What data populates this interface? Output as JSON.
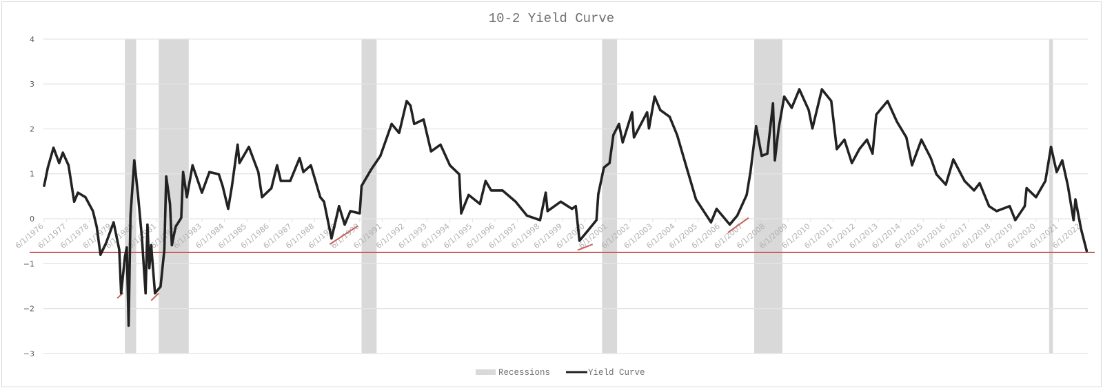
{
  "chart_data": {
    "type": "line",
    "title": "10-2 Yield Curve",
    "xlabel": "",
    "ylabel": "",
    "ylim": [
      -3,
      4
    ],
    "y_ticks": [
      "4",
      "3",
      "2",
      "1",
      "0",
      "−1",
      "−2",
      "−3"
    ],
    "y_tick_values": [
      4,
      3,
      2,
      1,
      0,
      -1,
      -2,
      -3
    ],
    "x_tick_labels": [
      "6/1/1976",
      "6/1/1977",
      "6/1/1978",
      "6/1/1979",
      "6/1/1980",
      "6/1/1981",
      "6/1/1982",
      "6/1/1983",
      "6/1/1984",
      "6/1/1985",
      "6/1/1986",
      "6/1/1987",
      "6/1/1988",
      "6/1/1989",
      "6/1/1990",
      "6/1/1991",
      "6/1/1992",
      "6/1/1993",
      "6/1/1994",
      "6/1/1995",
      "6/1/1996",
      "6/1/1997",
      "6/1/1998",
      "6/1/1999",
      "6/1/2000",
      "6/1/2001",
      "6/1/2002",
      "6/1/2003",
      "6/1/2004",
      "6/1/2005",
      "6/1/2006",
      "6/1/2007",
      "6/1/2008",
      "6/1/2009",
      "6/1/2010",
      "6/1/2011",
      "6/1/2012",
      "6/1/2013",
      "6/1/2014",
      "6/1/2015",
      "6/1/2016",
      "6/1/2017",
      "6/1/2018",
      "6/1/2019",
      "6/1/2020",
      "6/1/2021",
      "6/1/2022"
    ],
    "grid": true,
    "legend_position": "bottom",
    "legend": [
      {
        "label": "Recessions",
        "kind": "area",
        "color": "#d9d9d9"
      },
      {
        "label": "Yield Curve",
        "kind": "line",
        "color": "#222222"
      }
    ],
    "colors": {
      "series": "#222222",
      "recession": "#d9d9d9",
      "annotation": "#c9605c"
    },
    "recessions": [
      {
        "start": "1980-01",
        "end": "1980-07"
      },
      {
        "start": "1981-07",
        "end": "1982-11"
      },
      {
        "start": "1990-07",
        "end": "1991-03"
      },
      {
        "start": "2001-03",
        "end": "2001-11"
      },
      {
        "start": "2007-12",
        "end": "2009-03"
      },
      {
        "start": "2021-01",
        "end": "2021-03"
      }
    ],
    "series": [
      {
        "name": "Yield Curve",
        "dates": [
          "1976-06",
          "1976-08",
          "1976-11",
          "1977-02",
          "1977-04",
          "1977-07",
          "1977-10",
          "1977-12",
          "1978-04",
          "1978-08",
          "1978-10",
          "1978-12",
          "1979-03",
          "1979-07",
          "1979-10",
          "1979-11",
          "1980-01",
          "1980-02",
          "1980-03",
          "1980-04",
          "1980-06",
          "1980-08",
          "1980-10",
          "1980-12",
          "1981-01",
          "1981-02",
          "1981-03",
          "1981-05",
          "1981-08",
          "1981-10",
          "1981-11",
          "1982-01",
          "1982-02",
          "1982-04",
          "1982-07",
          "1982-08",
          "1982-10",
          "1983-01",
          "1983-06",
          "1983-10",
          "1984-03",
          "1984-05",
          "1984-08",
          "1984-10",
          "1985-01",
          "1985-02",
          "1985-07",
          "1985-12",
          "1986-02",
          "1986-07",
          "1986-10",
          "1986-12",
          "1987-05",
          "1987-10",
          "1987-12",
          "1988-04",
          "1988-09",
          "1988-11",
          "1989-03",
          "1989-07",
          "1989-10",
          "1990-01",
          "1990-06",
          "1990-07",
          "1990-12",
          "1991-05",
          "1991-11",
          "1992-03",
          "1992-07",
          "1992-09",
          "1992-11",
          "1993-04",
          "1993-08",
          "1994-01",
          "1994-06",
          "1994-11",
          "1994-12",
          "1995-04",
          "1995-10",
          "1996-01",
          "1996-04",
          "1996-10",
          "1997-05",
          "1997-11",
          "1998-06",
          "1998-09",
          "1998-10",
          "1999-05",
          "1999-11",
          "2000-01",
          "2000-03",
          "2000-07",
          "2000-12",
          "2001-01",
          "2001-04",
          "2001-07",
          "2001-09",
          "2001-12",
          "2002-02",
          "2002-07",
          "2002-08",
          "2003-03",
          "2003-04",
          "2003-07",
          "2003-10",
          "2004-03",
          "2004-07",
          "2004-12",
          "2005-05",
          "2006-01",
          "2006-04",
          "2006-11",
          "2007-03",
          "2007-08",
          "2007-10",
          "2008-01",
          "2008-04",
          "2008-07",
          "2008-10",
          "2008-11",
          "2009-01",
          "2009-04",
          "2009-08",
          "2009-12",
          "2010-05",
          "2010-07",
          "2010-12",
          "2011-05",
          "2011-08",
          "2011-12",
          "2012-04",
          "2012-08",
          "2012-12",
          "2013-03",
          "2013-05",
          "2013-11",
          "2014-04",
          "2014-09",
          "2014-12",
          "2015-05",
          "2015-10",
          "2016-01",
          "2016-06",
          "2016-10",
          "2017-04",
          "2017-09",
          "2017-12",
          "2018-05",
          "2018-09",
          "2019-04",
          "2019-07",
          "2019-12",
          "2020-01",
          "2020-06",
          "2020-11",
          "2021-02",
          "2021-05",
          "2021-08",
          "2021-11",
          "2022-02",
          "2022-03",
          "2022-06",
          "2022-09"
        ],
        "values": [
          0.73,
          1.14,
          1.58,
          1.24,
          1.47,
          1.19,
          0.38,
          0.58,
          0.48,
          0.17,
          -0.18,
          -0.8,
          -0.54,
          -0.08,
          -0.69,
          -1.66,
          -0.85,
          -0.64,
          -2.38,
          0.07,
          1.3,
          0.53,
          -0.39,
          -1.66,
          -0.13,
          -1.1,
          -0.59,
          -1.66,
          -1.51,
          -0.69,
          0.94,
          0.33,
          -0.59,
          -0.18,
          0.02,
          1.04,
          0.48,
          1.19,
          0.58,
          1.04,
          0.99,
          0.73,
          0.22,
          0.73,
          1.65,
          1.24,
          1.6,
          1.04,
          0.48,
          0.68,
          1.19,
          0.84,
          0.84,
          1.35,
          1.04,
          1.19,
          0.48,
          0.38,
          -0.44,
          0.28,
          -0.13,
          0.17,
          0.12,
          0.73,
          1.09,
          1.4,
          2.11,
          1.91,
          2.62,
          2.52,
          2.11,
          2.21,
          1.5,
          1.65,
          1.19,
          0.99,
          0.12,
          0.53,
          0.33,
          0.84,
          0.63,
          0.63,
          0.38,
          0.07,
          -0.03,
          0.58,
          0.17,
          0.38,
          0.22,
          0.28,
          -0.49,
          -0.29,
          -0.03,
          0.55,
          1.14,
          1.24,
          1.86,
          2.11,
          1.7,
          2.37,
          1.81,
          2.37,
          2.01,
          2.72,
          2.42,
          2.27,
          1.86,
          1.14,
          0.43,
          -0.08,
          0.22,
          -0.13,
          0.07,
          0.53,
          1.04,
          2.06,
          1.4,
          1.45,
          2.57,
          1.3,
          2.01,
          2.72,
          2.47,
          2.88,
          2.42,
          2.01,
          2.88,
          2.62,
          1.55,
          1.76,
          1.24,
          1.55,
          1.76,
          1.45,
          2.32,
          2.62,
          2.16,
          1.81,
          1.19,
          1.76,
          1.35,
          0.99,
          0.76,
          1.32,
          0.84,
          0.63,
          0.79,
          0.28,
          0.17,
          0.28,
          -0.03,
          0.28,
          0.68,
          0.48,
          0.84,
          1.6,
          1.04,
          1.3,
          0.73,
          -0.03,
          0.43,
          -0.23,
          -0.72
        ]
      }
    ],
    "annotations": {
      "horizontal_line": -0.75,
      "trend_segments": [
        {
          "from": [
            "1979-09",
            -1.77
          ],
          "to": [
            "1979-12",
            -1.65
          ]
        },
        {
          "from": [
            "1981-03",
            -1.82
          ],
          "to": [
            "1981-07",
            -1.66
          ]
        },
        {
          "from": [
            "1989-02",
            -0.57
          ],
          "to": [
            "1990-05",
            -0.16
          ]
        },
        {
          "from": [
            "2000-02",
            -0.7
          ],
          "to": [
            "2000-10",
            -0.57
          ]
        },
        {
          "from": [
            "2006-10",
            -0.31
          ],
          "to": [
            "2007-09",
            0.02
          ]
        }
      ]
    }
  }
}
